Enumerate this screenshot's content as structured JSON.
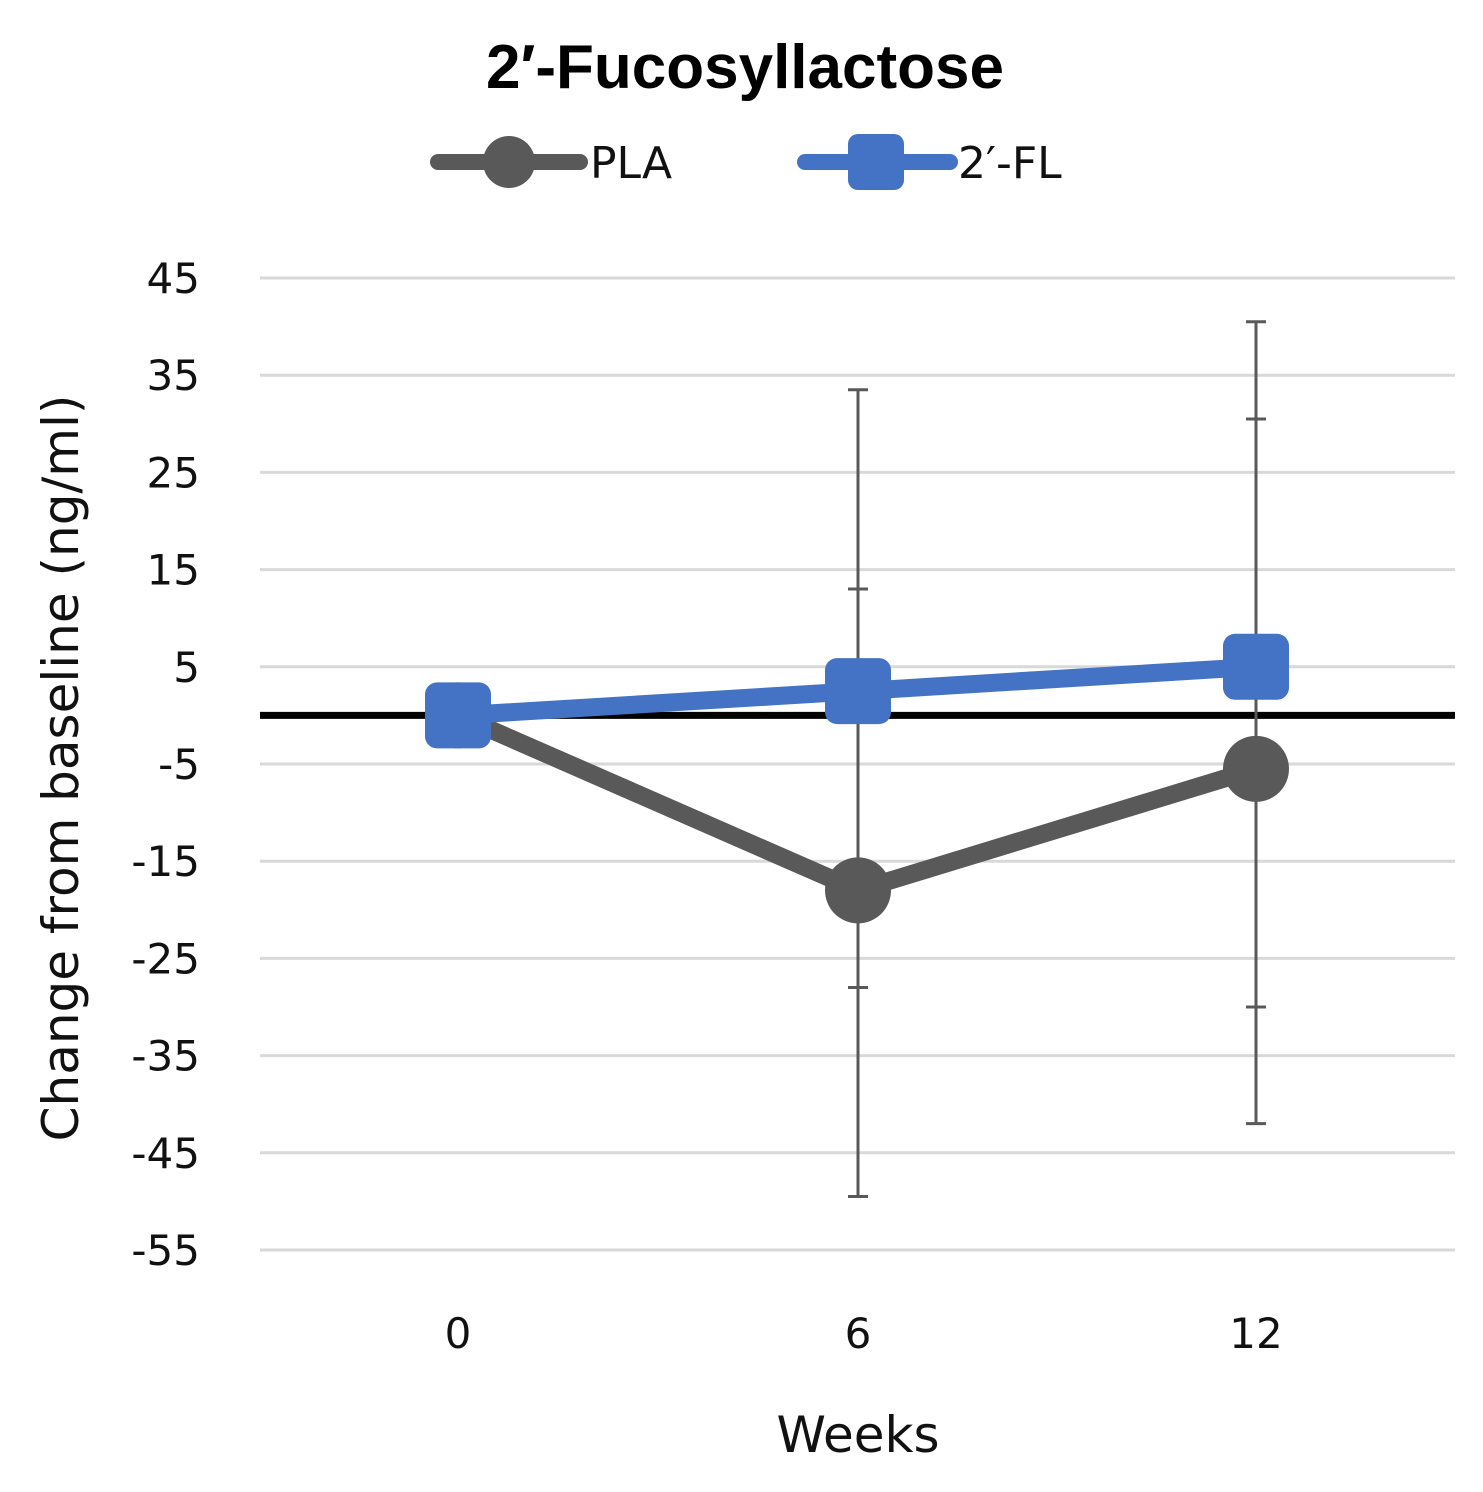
{
  "chart_data": {
    "type": "line",
    "title": "2′-Fucosyllactose",
    "xlabel": "Weeks",
    "ylabel": "Change from baseline (ng/ml)",
    "categories": [
      "0",
      "6",
      "12"
    ],
    "ylim": [
      -55,
      45
    ],
    "yticks": [
      "45",
      "35",
      "25",
      "15",
      "5",
      "-5",
      "-15",
      "-25",
      "-35",
      "-45",
      "-55"
    ],
    "grid": true,
    "legend": "top",
    "zero_line": true,
    "series": [
      {
        "name": "PLA",
        "marker": "circle",
        "color": "#595959",
        "values": [
          0,
          -18,
          -5.5
        ],
        "error_low": [
          null,
          -49.5,
          -42
        ],
        "error_high": [
          null,
          33.5,
          40.5
        ]
      },
      {
        "name": "2′-FL",
        "color": "#4472C4",
        "marker": "square",
        "values": [
          0,
          2.5,
          5
        ],
        "error_low": [
          null,
          -28,
          -30
        ],
        "error_high": [
          null,
          13,
          30.5
        ]
      }
    ]
  }
}
